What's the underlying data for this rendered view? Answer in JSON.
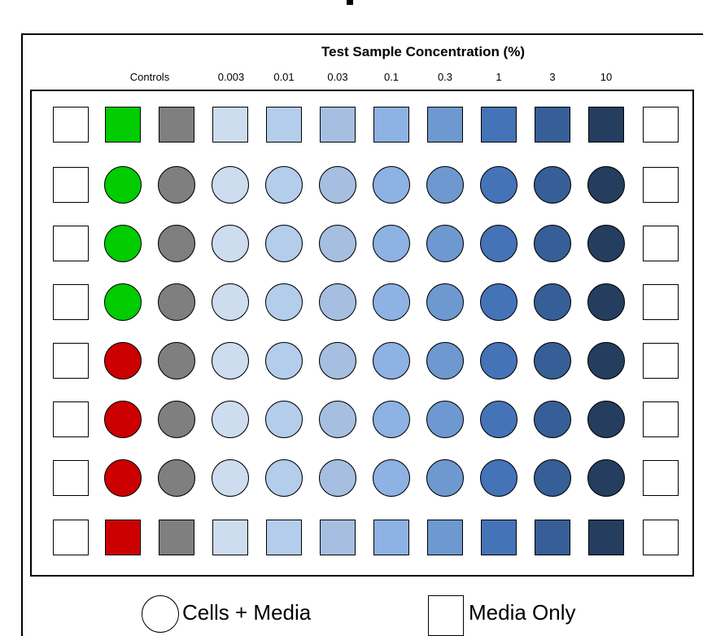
{
  "header": {
    "title": "Test Sample Concentration (%)",
    "columns": [
      "Controls",
      "0.003",
      "0.01",
      "0.03",
      "0.1",
      "0.3",
      "1",
      "3",
      "10"
    ]
  },
  "colors": {
    "empty": "#ffffff",
    "positive_control": "#00cc00",
    "negative_control": "#cc0000",
    "vehicle_control": "#7f7f7f",
    "conc_0_003": "#cddcee",
    "conc_0_01": "#b3cdeb",
    "conc_0_03": "#a6bfe0",
    "conc_0_1": "#8db2e3",
    "conc_0_3": "#6e98d0",
    "conc_1": "#4573b8",
    "conc_3": "#365f97",
    "conc_10": "#253d5f"
  },
  "plate": {
    "rows": [
      [
        "media",
        "pos",
        "veh",
        "c1",
        "c2",
        "c3",
        "c4",
        "c5",
        "c6",
        "c7",
        "c8",
        "media"
      ],
      [
        "media",
        "pos",
        "veh",
        "c1",
        "c2",
        "c3",
        "c4",
        "c5",
        "c6",
        "c7",
        "c8",
        "media"
      ],
      [
        "media",
        "pos",
        "veh",
        "c1",
        "c2",
        "c3",
        "c4",
        "c5",
        "c6",
        "c7",
        "c8",
        "media"
      ],
      [
        "media",
        "pos",
        "veh",
        "c1",
        "c2",
        "c3",
        "c4",
        "c5",
        "c6",
        "c7",
        "c8",
        "media"
      ],
      [
        "media",
        "neg",
        "veh",
        "c1",
        "c2",
        "c3",
        "c4",
        "c5",
        "c6",
        "c7",
        "c8",
        "media"
      ],
      [
        "media",
        "neg",
        "veh",
        "c1",
        "c2",
        "c3",
        "c4",
        "c5",
        "c6",
        "c7",
        "c8",
        "media"
      ],
      [
        "media",
        "neg",
        "veh",
        "c1",
        "c2",
        "c3",
        "c4",
        "c5",
        "c6",
        "c7",
        "c8",
        "media"
      ],
      [
        "media",
        "neg",
        "veh",
        "c1",
        "c2",
        "c3",
        "c4",
        "c5",
        "c6",
        "c7",
        "c8",
        "media"
      ]
    ],
    "shapes": [
      "square",
      "circle",
      "circle",
      "circle",
      "circle",
      "circle",
      "circle",
      "square"
    ],
    "edge_columns_shape": "square"
  },
  "legend": {
    "cells_media": "Cells + Media",
    "media_only": "Media Only"
  }
}
